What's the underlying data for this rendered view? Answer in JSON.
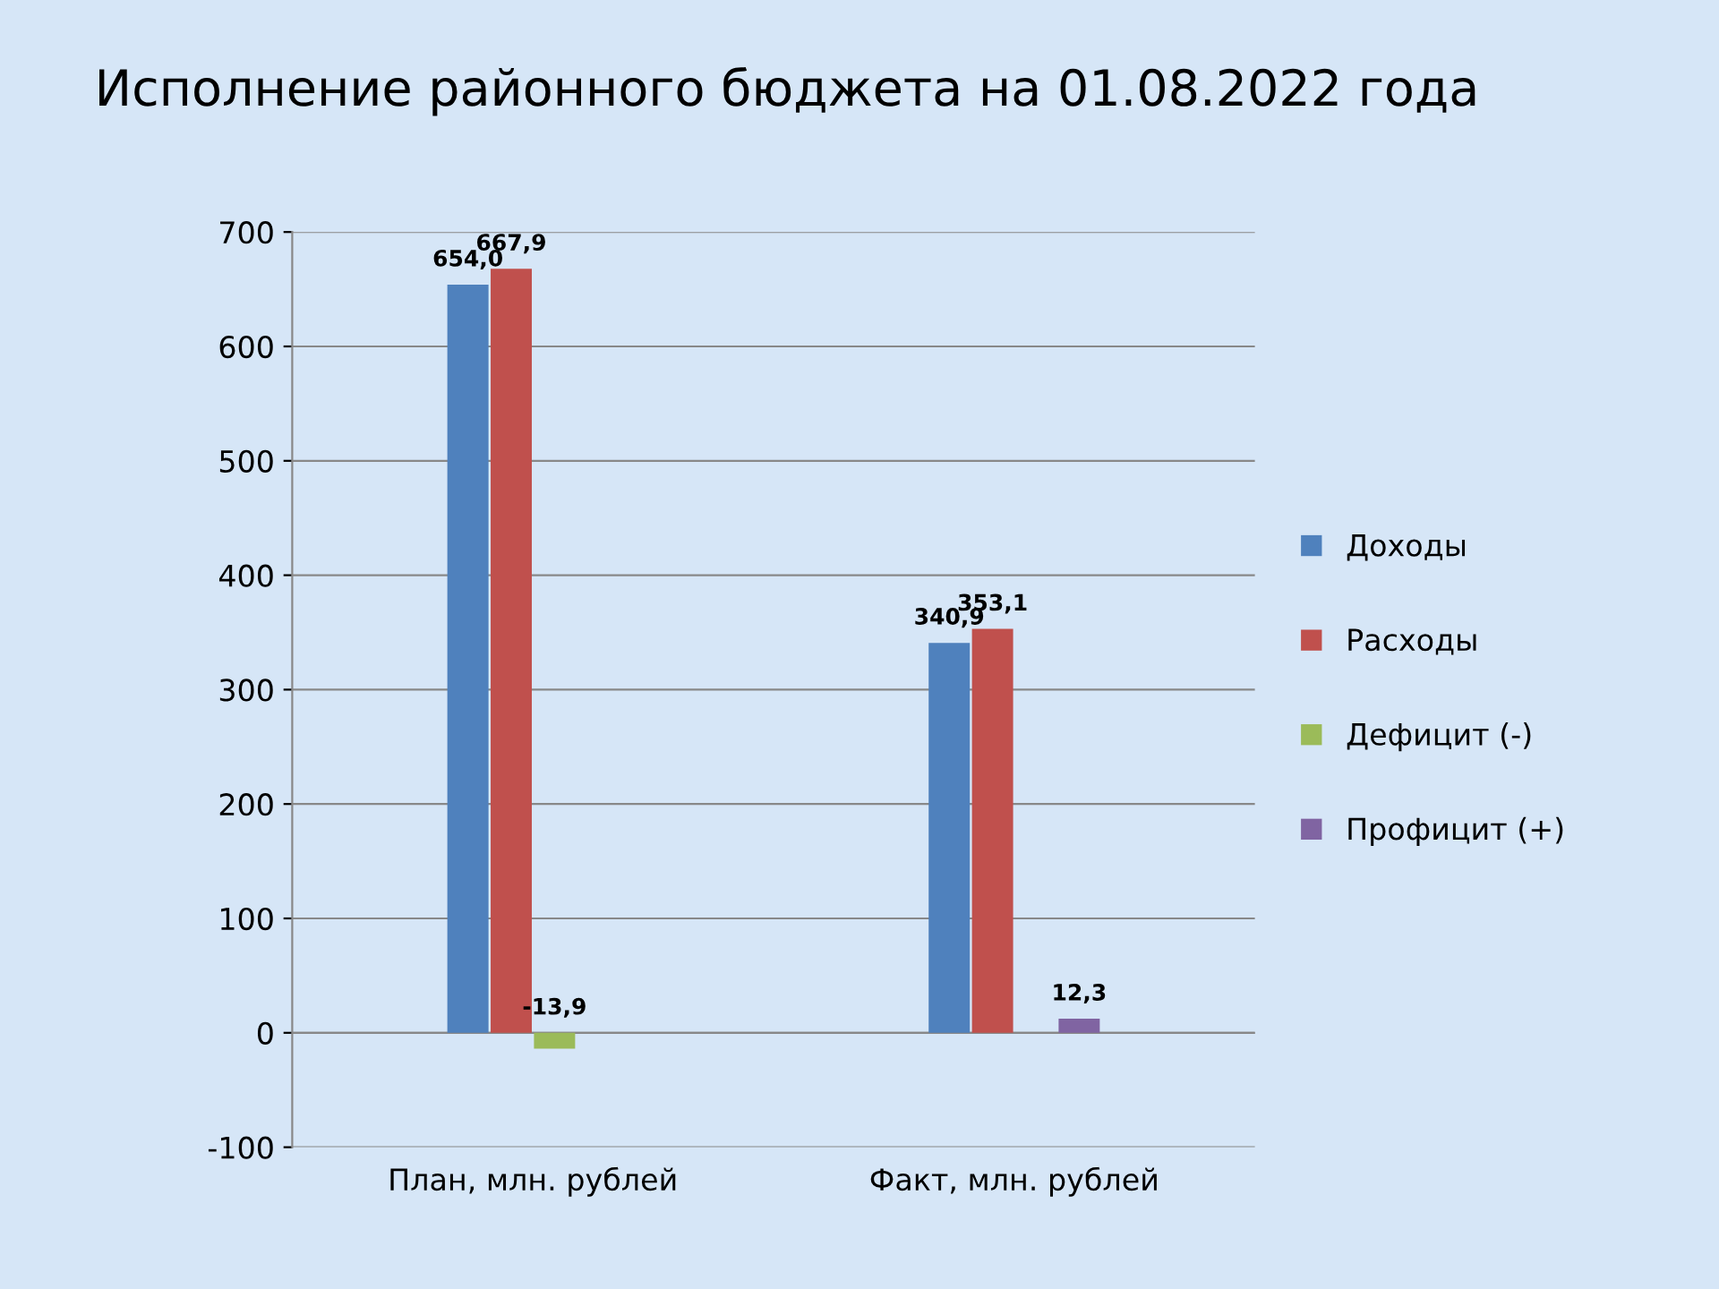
{
  "chart_data": {
    "type": "bar",
    "title": "Исполнение районного бюджета на 01.08.2022 года",
    "categories": [
      "План, млн. рублей",
      "Факт, млн. рублей"
    ],
    "series": [
      {
        "name": "Доходы",
        "color": "#4f81bd",
        "values": [
          654.0,
          340.9
        ],
        "value_labels": [
          "654,0",
          "340,9"
        ]
      },
      {
        "name": "Расходы",
        "color": "#c0504d",
        "values": [
          667.9,
          353.1
        ],
        "value_labels": [
          "667,9",
          "353,1"
        ]
      },
      {
        "name": "Дефицит (-)",
        "color": "#9bbb59",
        "values": [
          -13.9,
          null
        ],
        "value_labels": [
          "-13,9",
          null
        ]
      },
      {
        "name": "Профицит (+)",
        "color": "#8064a2",
        "values": [
          null,
          12.3
        ],
        "value_labels": [
          null,
          "12,3"
        ]
      }
    ],
    "ylim": [
      -100,
      700
    ],
    "yticks": [
      {
        "value": -100,
        "label": "-100"
      },
      0,
      100,
      200,
      300,
      400,
      500,
      600,
      700
    ],
    "grid": "y",
    "legend": "right"
  }
}
